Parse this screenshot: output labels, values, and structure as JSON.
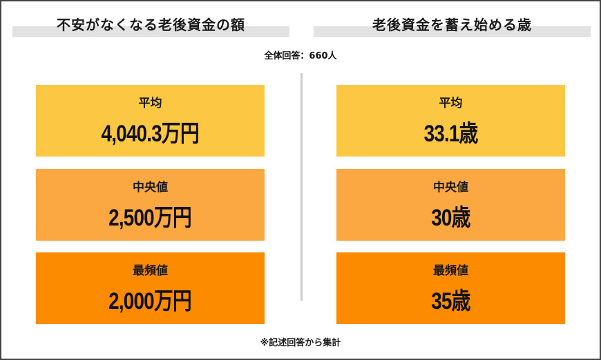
{
  "left_panel": {
    "title": "不安がなくなる老後資金の額",
    "cards": [
      {
        "label": "平均",
        "value": "4,040.3万円",
        "color": "#fcc844"
      },
      {
        "label": "中央値",
        "value": "2,500万円",
        "color": "#fba842"
      },
      {
        "label": "最頻値",
        "value": "2,000万円",
        "color": "#fc8b00"
      }
    ]
  },
  "right_panel": {
    "title": "老後資金を蓄え始める歳",
    "cards": [
      {
        "label": "平均",
        "value": "33.1歳",
        "color": "#fcc844"
      },
      {
        "label": "中央値",
        "value": "30歳",
        "color": "#fba842"
      },
      {
        "label": "最頻値",
        "value": "35歳",
        "color": "#fc8b00"
      }
    ]
  },
  "respondents": "全体回答：660人",
  "footnote": "※記述回答から集計",
  "colors": {
    "header_band": "#e2e2e2",
    "divider": "#cccccc",
    "frame_border": "#444444"
  }
}
